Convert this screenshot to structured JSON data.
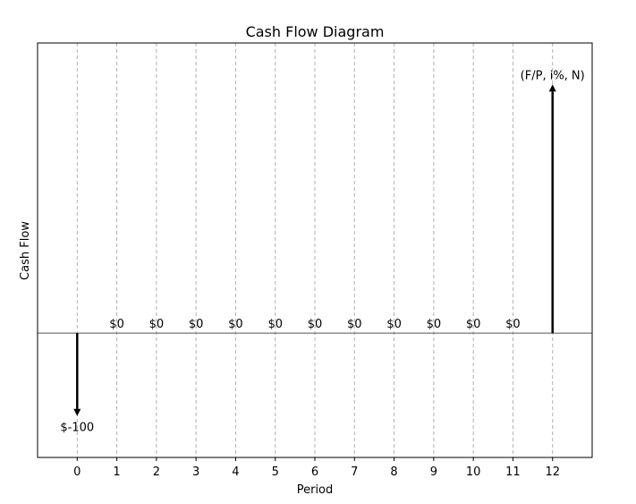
{
  "chart_data": {
    "type": "bar",
    "title": "Cash Flow Diagram",
    "xlabel": "Period",
    "ylabel": "Cash Flow",
    "grid": "vertical dashed",
    "x": [
      0,
      1,
      2,
      3,
      4,
      5,
      6,
      7,
      8,
      9,
      10,
      11,
      12
    ],
    "xlim": [
      -1,
      13
    ],
    "ylim": [
      -1.5,
      3.5
    ],
    "flows": [
      {
        "period": 0,
        "value": -1.0,
        "label": "$-100"
      },
      {
        "period": 1,
        "value": 0,
        "label": "$0"
      },
      {
        "period": 2,
        "value": 0,
        "label": "$0"
      },
      {
        "period": 3,
        "value": 0,
        "label": "$0"
      },
      {
        "period": 4,
        "value": 0,
        "label": "$0"
      },
      {
        "period": 5,
        "value": 0,
        "label": "$0"
      },
      {
        "period": 6,
        "value": 0,
        "label": "$0"
      },
      {
        "period": 7,
        "value": 0,
        "label": "$0"
      },
      {
        "period": 8,
        "value": 0,
        "label": "$0"
      },
      {
        "period": 9,
        "value": 0,
        "label": "$0"
      },
      {
        "period": 10,
        "value": 0,
        "label": "$0"
      },
      {
        "period": 11,
        "value": 0,
        "label": "$0"
      },
      {
        "period": 12,
        "value": 3.0,
        "label": "(F/P, i%, N)"
      }
    ],
    "colors": {
      "arrow": "#000000",
      "grid": "#b0b0b0",
      "baseline": "#555555"
    }
  }
}
